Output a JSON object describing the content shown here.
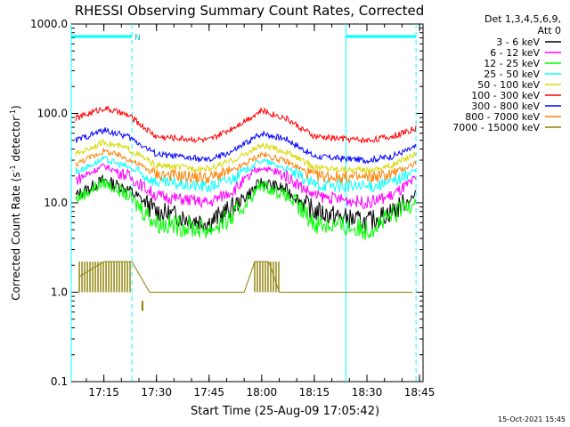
{
  "chart_data": {
    "type": "line",
    "title": "RHESSI Observing Summary Count Rates, Corrected",
    "xlabel": "Start Time (25-Aug-09 17:05:42)",
    "ylabel_main": "Corrected Count Rate (s",
    "ylabel_sup1": "-1",
    "ylabel_mid": " detector",
    "ylabel_sup2": "-1",
    "ylabel_end": ")",
    "yscale": "log",
    "ylim": [
      0.1,
      1000
    ],
    "xlim": [
      "17:05:42",
      "18:46:00"
    ],
    "y_ticks": [
      "0.1",
      "1.0",
      "10.0",
      "100.0",
      "1000.0"
    ],
    "x_ticks": [
      "17:15",
      "17:30",
      "17:45",
      "18:00",
      "18:15",
      "18:30",
      "18:45"
    ],
    "legend_header": [
      "Det 1,3,4,5,6,9,",
      "Att 0"
    ],
    "legend_position": "right",
    "night_marker": "N",
    "timestamp": "15-Oct-2021 15:45",
    "series": [
      {
        "name": "3 - 6 keV",
        "color": "#000000",
        "points": [
          [
            "17:07",
            12
          ],
          [
            "17:15",
            18
          ],
          [
            "17:22",
            14
          ],
          [
            "17:30",
            8
          ],
          [
            "17:45",
            6
          ],
          [
            "17:52",
            9
          ],
          [
            "18:00",
            17
          ],
          [
            "18:07",
            14
          ],
          [
            "18:15",
            8
          ],
          [
            "18:30",
            6
          ],
          [
            "18:37",
            8
          ],
          [
            "18:44",
            12
          ]
        ]
      },
      {
        "name": "6 - 12 keV",
        "color": "#ff00ff",
        "points": [
          [
            "17:07",
            18
          ],
          [
            "17:15",
            26
          ],
          [
            "17:22",
            20
          ],
          [
            "17:30",
            12
          ],
          [
            "17:45",
            10
          ],
          [
            "17:52",
            14
          ],
          [
            "18:00",
            25
          ],
          [
            "18:07",
            20
          ],
          [
            "18:15",
            12
          ],
          [
            "18:30",
            10
          ],
          [
            "18:37",
            12
          ],
          [
            "18:44",
            18
          ]
        ]
      },
      {
        "name": "12 - 25 keV",
        "color": "#00ff00",
        "points": [
          [
            "17:07",
            11
          ],
          [
            "17:15",
            17
          ],
          [
            "17:22",
            12
          ],
          [
            "17:30",
            6
          ],
          [
            "17:45",
            5
          ],
          [
            "17:52",
            7
          ],
          [
            "18:00",
            16
          ],
          [
            "18:07",
            12
          ],
          [
            "18:15",
            6
          ],
          [
            "18:30",
            5
          ],
          [
            "18:37",
            7
          ],
          [
            "18:44",
            11
          ]
        ]
      },
      {
        "name": "25 - 50 keV",
        "color": "#00ffff",
        "points": [
          [
            "17:07",
            22
          ],
          [
            "17:15",
            31
          ],
          [
            "17:22",
            25
          ],
          [
            "17:30",
            17
          ],
          [
            "17:45",
            15
          ],
          [
            "17:52",
            19
          ],
          [
            "18:00",
            30
          ],
          [
            "18:07",
            24
          ],
          [
            "18:15",
            16
          ],
          [
            "18:30",
            15
          ],
          [
            "18:37",
            17
          ],
          [
            "18:44",
            23
          ]
        ]
      },
      {
        "name": "50 - 100 keV",
        "color": "#d8d800",
        "points": [
          [
            "17:07",
            35
          ],
          [
            "17:15",
            48
          ],
          [
            "17:22",
            40
          ],
          [
            "17:30",
            26
          ],
          [
            "17:45",
            24
          ],
          [
            "17:52",
            30
          ],
          [
            "18:00",
            44
          ],
          [
            "18:07",
            37
          ],
          [
            "18:15",
            25
          ],
          [
            "18:30",
            23
          ],
          [
            "18:37",
            26
          ],
          [
            "18:44",
            36
          ]
        ]
      },
      {
        "name": "100 - 300 keV",
        "color": "#ff0000",
        "points": [
          [
            "17:07",
            88
          ],
          [
            "17:15",
            115
          ],
          [
            "17:22",
            95
          ],
          [
            "17:30",
            55
          ],
          [
            "17:45",
            50
          ],
          [
            "17:52",
            70
          ],
          [
            "18:00",
            108
          ],
          [
            "18:07",
            88
          ],
          [
            "18:15",
            55
          ],
          [
            "18:30",
            50
          ],
          [
            "18:37",
            55
          ],
          [
            "18:44",
            68
          ]
        ]
      },
      {
        "name": "300 - 800 keV",
        "color": "#0000ff",
        "points": [
          [
            "17:07",
            50
          ],
          [
            "17:15",
            65
          ],
          [
            "17:22",
            55
          ],
          [
            "17:30",
            35
          ],
          [
            "17:45",
            30
          ],
          [
            "17:52",
            38
          ],
          [
            "18:00",
            60
          ],
          [
            "18:07",
            52
          ],
          [
            "18:15",
            33
          ],
          [
            "18:30",
            30
          ],
          [
            "18:37",
            33
          ],
          [
            "18:44",
            42
          ]
        ]
      },
      {
        "name": "800 - 7000 keV",
        "color": "#ff8000",
        "points": [
          [
            "17:07",
            27
          ],
          [
            "17:15",
            38
          ],
          [
            "17:22",
            31
          ],
          [
            "17:30",
            21
          ],
          [
            "17:45",
            19
          ],
          [
            "17:52",
            23
          ],
          [
            "18:00",
            35
          ],
          [
            "18:07",
            29
          ],
          [
            "18:15",
            20
          ],
          [
            "18:30",
            19
          ],
          [
            "18:37",
            21
          ],
          [
            "18:44",
            28
          ]
        ]
      },
      {
        "name": "7000 - 15000 keV",
        "color": "#8b8000",
        "points": [
          [
            "17:08",
            1.5
          ],
          [
            "17:15",
            2.2
          ],
          [
            "17:23",
            2.2
          ],
          [
            "17:28",
            1.0
          ],
          [
            "17:55",
            1.0
          ],
          [
            "17:58",
            2.2
          ],
          [
            "18:02",
            2.2
          ],
          [
            "18:05",
            1.0
          ],
          [
            "18:43",
            1.0
          ]
        ]
      }
    ],
    "vertical_lines": [
      {
        "time": "17:05:42",
        "style": "solid",
        "color": "#00ffff"
      },
      {
        "time": "17:23:00",
        "style": "dashed",
        "color": "#00ffff"
      },
      {
        "time": "18:24:00",
        "style": "solid",
        "color": "#00ffff"
      },
      {
        "time": "18:44:00",
        "style": "dashed",
        "color": "#00ffff"
      }
    ],
    "night_bars": [
      {
        "start": "17:05:42",
        "end": "17:23:00"
      },
      {
        "start": "18:24:00",
        "end": "18:44:00"
      }
    ]
  }
}
